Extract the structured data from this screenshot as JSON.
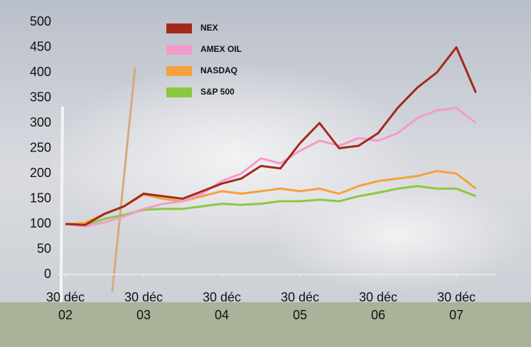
{
  "chart_data": {
    "type": "line",
    "x": [
      2003.0,
      2003.25,
      2003.5,
      2003.75,
      2004.0,
      2004.25,
      2004.5,
      2004.75,
      2005.0,
      2005.25,
      2005.5,
      2005.75,
      2006.0,
      2006.25,
      2006.5,
      2006.75,
      2007.0,
      2007.25,
      2007.5,
      2007.75,
      2008.0,
      2008.25
    ],
    "series": [
      {
        "name": "NEX",
        "color": "#a3281b",
        "values": [
          100,
          98,
          120,
          135,
          160,
          155,
          150,
          165,
          180,
          190,
          215,
          210,
          260,
          300,
          250,
          255,
          280,
          330,
          370,
          400,
          450,
          360
        ]
      },
      {
        "name": "AMEX OIL",
        "color": "#f39bc9",
        "values": [
          100,
          95,
          103,
          115,
          130,
          140,
          145,
          160,
          185,
          200,
          230,
          220,
          245,
          265,
          255,
          270,
          265,
          280,
          310,
          325,
          330,
          300
        ]
      },
      {
        "name": "NASDAQ",
        "color": "#f7a03c",
        "values": [
          100,
          102,
          120,
          135,
          158,
          150,
          145,
          155,
          165,
          160,
          165,
          170,
          165,
          170,
          160,
          175,
          185,
          190,
          195,
          205,
          200,
          170
        ]
      },
      {
        "name": "S&P 500",
        "color": "#8cc83f",
        "values": [
          100,
          98,
          110,
          118,
          128,
          130,
          130,
          135,
          140,
          138,
          140,
          145,
          145,
          148,
          145,
          155,
          162,
          170,
          175,
          170,
          170,
          155
        ]
      }
    ],
    "xlim": [
      2002.9,
      2008.5
    ],
    "xticks": [
      {
        "value": 2003,
        "label": "30 déc 02"
      },
      {
        "value": 2004,
        "label": "30 déc 03"
      },
      {
        "value": 2005,
        "label": "30 déc 04"
      },
      {
        "value": 2006,
        "label": "30 déc 05"
      },
      {
        "value": 2007,
        "label": "30 déc 06"
      },
      {
        "value": 2008,
        "label": "30 déc 07"
      }
    ],
    "ylim": [
      0,
      500
    ],
    "yticks": [
      0,
      50,
      100,
      150,
      200,
      250,
      300,
      350,
      400,
      450,
      500
    ],
    "legend": "top-left"
  }
}
